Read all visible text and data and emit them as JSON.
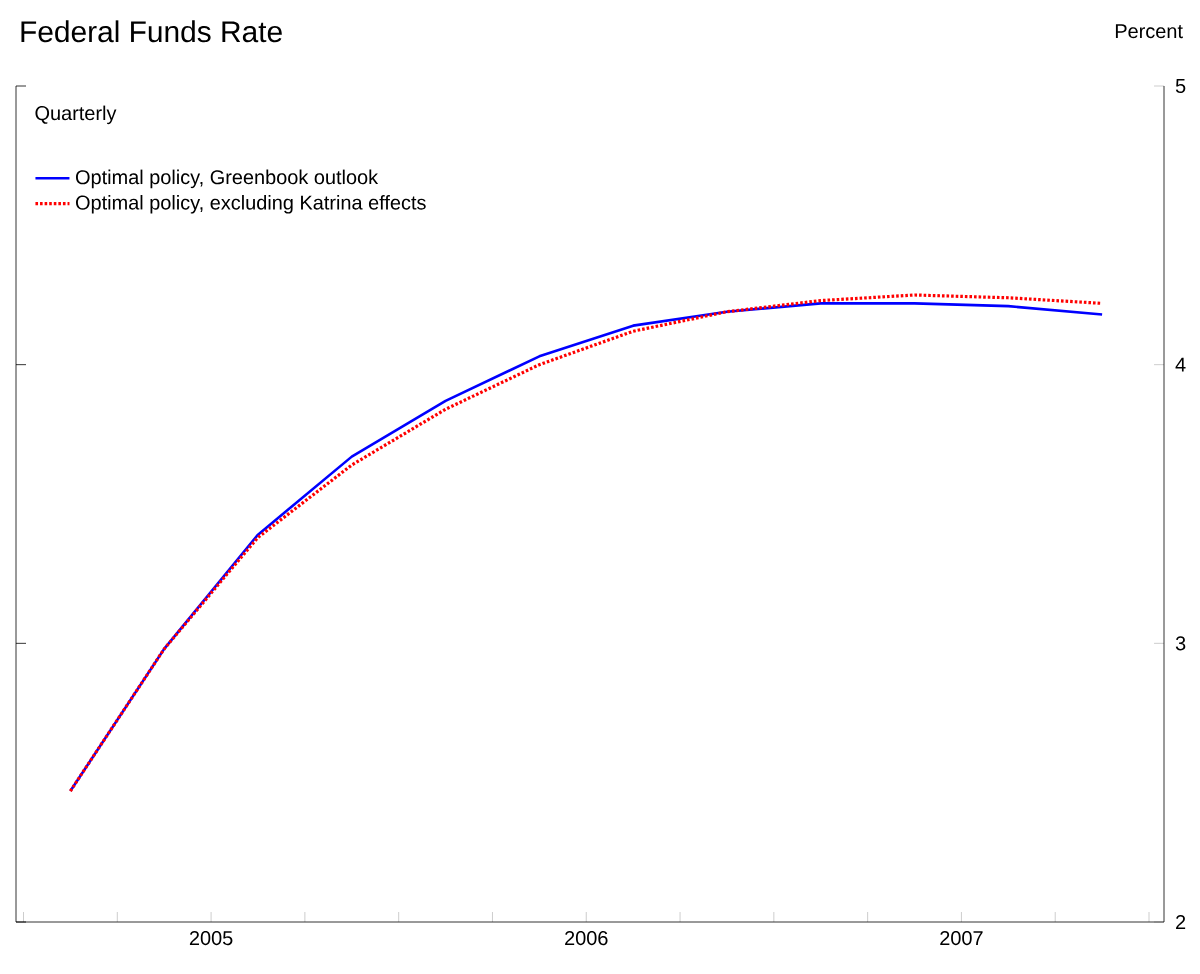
{
  "chart_data": {
    "type": "line",
    "title": "Federal Funds Rate",
    "ylabel": "Percent",
    "annotations": [
      "Quarterly"
    ],
    "x": [
      2005.125,
      2005.375,
      2005.625,
      2005.875,
      2006.125,
      2006.375,
      2006.625,
      2006.875,
      2007.125,
      2007.375,
      2007.625,
      2007.875
    ],
    "series": [
      {
        "name": "Optimal policy, Greenbook outlook",
        "color": "#0000ff",
        "line_style": "solid",
        "values": [
          2.47,
          2.98,
          3.39,
          3.67,
          3.87,
          4.03,
          4.14,
          4.19,
          4.22,
          4.22,
          4.21,
          4.18
        ]
      },
      {
        "name": "Optimal policy, excluding Katrina effects",
        "color": "#ff0000",
        "line_style": "dotted",
        "values": [
          2.47,
          2.98,
          3.38,
          3.64,
          3.84,
          4.0,
          4.12,
          4.19,
          4.23,
          4.25,
          4.24,
          4.22
        ]
      }
    ],
    "xlim": [
      2004.98,
      2008.04
    ],
    "ylim": [
      2,
      5
    ],
    "xticks": [
      {
        "value": 2005.0,
        "label": null
      },
      {
        "value": 2005.25,
        "label": null
      },
      {
        "value": 2005.5,
        "label": "2005"
      },
      {
        "value": 2005.75,
        "label": null
      },
      {
        "value": 2006.0,
        "label": null
      },
      {
        "value": 2006.25,
        "label": null
      },
      {
        "value": 2006.5,
        "label": "2006"
      },
      {
        "value": 2006.75,
        "label": null
      },
      {
        "value": 2007.0,
        "label": null
      },
      {
        "value": 2007.25,
        "label": null
      },
      {
        "value": 2007.5,
        "label": "2007"
      },
      {
        "value": 2007.75,
        "label": null
      },
      {
        "value": 2008.0,
        "label": null
      }
    ],
    "yticks": [
      2,
      3,
      4,
      5
    ],
    "legend": "top left"
  }
}
